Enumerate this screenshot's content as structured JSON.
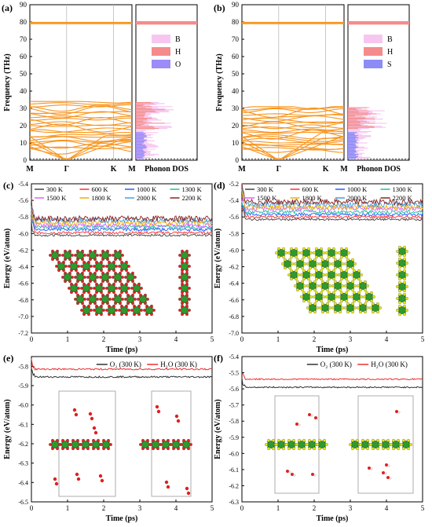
{
  "figure": {
    "panels": [
      {
        "label": "(a)",
        "dos_legend": [
          "B",
          "H",
          "O"
        ],
        "xticks": [
          "M",
          "Γ",
          "K",
          "M"
        ],
        "dos_label": "Phonon DOS",
        "ylabel": "Frequency (THz)",
        "yticks": [
          "0",
          "10",
          "20",
          "30",
          "40",
          "50",
          "60",
          "70",
          "80",
          "90"
        ]
      },
      {
        "label": "(b)",
        "dos_legend": [
          "B",
          "H",
          "S"
        ],
        "xticks": [
          "M",
          "Γ",
          "K",
          "M"
        ],
        "dos_label": "Phonon DOS",
        "ylabel": "Frequency (THz)",
        "yticks": [
          "0",
          "10",
          "20",
          "30",
          "40",
          "50",
          "60",
          "70",
          "80",
          "90"
        ]
      },
      {
        "label": "(c)",
        "ylabel": "Energy (eV/atom)",
        "xlabel": "Time (ps)",
        "yticks": [
          "-7.2",
          "-7.0",
          "-6.8",
          "-6.6",
          "-6.4",
          "-6.2",
          "-6.0",
          "-5.8",
          "-5.6",
          "-5.4"
        ],
        "xticks": [
          "0",
          "1",
          "2",
          "3",
          "4",
          "5"
        ],
        "legend": [
          "300 K",
          "600 K",
          "1000 K",
          "1300 K",
          "1500 K",
          "1800 K",
          "2000 K",
          "2200 K"
        ]
      },
      {
        "label": "(d)",
        "ylabel": "Energy (eV/atom)",
        "xlabel": "Time (ps)",
        "yticks": [
          "-7.0",
          "-6.8",
          "-6.6",
          "-6.4",
          "-6.2",
          "-6.0",
          "-5.8",
          "-5.6",
          "-5.4",
          "-5.2"
        ],
        "xticks": [
          "0",
          "1",
          "2",
          "3",
          "4",
          "5"
        ],
        "legend": [
          "300 K",
          "600 K",
          "1000 K",
          "1300 K",
          "1500 K",
          "1800 K",
          "2000 K",
          "2200 K"
        ]
      },
      {
        "label": "(e)",
        "ylabel": "Energy (eV/atom)",
        "xlabel": "Time (ps)",
        "yticks": [
          "-6.5",
          "-6.4",
          "-6.3",
          "-6.2",
          "-6.1",
          "-6.0",
          "-5.9",
          "-5.8"
        ],
        "xticks": [
          "0",
          "1",
          "2",
          "3",
          "4",
          "5"
        ],
        "legend": [
          "O₂ (300 K)",
          "H₂O (300 K)"
        ]
      },
      {
        "label": "(f)",
        "ylabel": "Energy (eV/atom)",
        "xlabel": "Time (ps)",
        "yticks": [
          "-6.3",
          "-6.2",
          "-6.1",
          "-6.0",
          "-5.9",
          "-5.8",
          "-5.7",
          "-5.6",
          "-5.5",
          "-5.4"
        ],
        "xticks": [
          "0",
          "1",
          "2",
          "3",
          "4",
          "5"
        ],
        "legend": [
          "O₂ (300 K)",
          "H₂O (300 K)"
        ]
      }
    ]
  },
  "colors": {
    "band": "#f7941d",
    "B": "#f7c6f0",
    "H": "#f48c8c",
    "O": "#9c8cf7",
    "S": "#8c8cf7",
    "boron": "#2e9a2e",
    "oxygen": "#e02020",
    "sulfur": "#e6e619",
    "hydrogen": "#f0f0f0",
    "temps": [
      "#444444",
      "#ff3030",
      "#2060ff",
      "#20c0a0",
      "#e060ff",
      "#f0b000",
      "#40a0e0",
      "#8b2020"
    ],
    "o2": "#333333",
    "h2o": "#ee3030"
  },
  "chart_data": [
    {
      "type": "line",
      "panel": "a",
      "title": "",
      "xlabel": "",
      "ylabel": "Frequency (THz)",
      "x": [
        "M",
        "Γ",
        "K",
        "M"
      ],
      "ylim": [
        0,
        90
      ],
      "series": [
        {
          "values_range": [
            0,
            35
          ]
        },
        {
          "values_range": [
            79,
            80
          ]
        }
      ],
      "dos": {
        "series": [
          {
            "name": "B",
            "range": [
              0,
              35
            ]
          },
          {
            "name": "H",
            "range": [
              20,
              35
            ]
          },
          {
            "name": "H",
            "range": [
              79,
              80
            ]
          },
          {
            "name": "O",
            "range": [
              0,
              15
            ]
          }
        ]
      }
    },
    {
      "type": "line",
      "panel": "b",
      "title": "",
      "xlabel": "",
      "ylabel": "Frequency (THz)",
      "x": [
        "M",
        "Γ",
        "K",
        "M"
      ],
      "ylim": [
        0,
        90
      ],
      "series": [
        {
          "values_range": [
            0,
            31
          ]
        },
        {
          "values_range": [
            79,
            80
          ]
        }
      ],
      "dos": {
        "series": [
          {
            "name": "B",
            "range": [
              0,
              31
            ]
          },
          {
            "name": "H",
            "range": [
              20,
              31
            ]
          },
          {
            "name": "H",
            "range": [
              79,
              80
            ]
          },
          {
            "name": "S",
            "range": [
              0,
              15
            ]
          }
        ]
      }
    },
    {
      "type": "line",
      "panel": "c",
      "xlabel": "Time (ps)",
      "ylabel": "Energy (eV/atom)",
      "xlim": [
        0,
        5
      ],
      "ylim": [
        -7.2,
        -5.4
      ],
      "series": [
        {
          "name": "300 K",
          "mean": -6.02
        },
        {
          "name": "600 K",
          "mean": -5.99
        },
        {
          "name": "1000 K",
          "mean": -5.95
        },
        {
          "name": "1300 K",
          "mean": -5.92
        },
        {
          "name": "1500 K",
          "mean": -5.9
        },
        {
          "name": "1800 K",
          "mean": -5.87
        },
        {
          "name": "2000 K",
          "mean": -5.84
        },
        {
          "name": "2200 K",
          "mean": -5.82
        }
      ]
    },
    {
      "type": "line",
      "panel": "d",
      "xlabel": "Time (ps)",
      "ylabel": "Energy (eV/atom)",
      "xlim": [
        0,
        5
      ],
      "ylim": [
        -7.0,
        -5.2
      ],
      "series": [
        {
          "name": "300 K",
          "mean": -5.63
        },
        {
          "name": "600 K",
          "mean": -5.6
        },
        {
          "name": "1000 K",
          "mean": -5.57
        },
        {
          "name": "1300 K",
          "mean": -5.54
        },
        {
          "name": "1500 K",
          "mean": -5.5
        },
        {
          "name": "1800 K",
          "mean": -5.48
        },
        {
          "name": "2000 K",
          "mean": -5.45
        },
        {
          "name": "2200 K",
          "mean": -5.42
        }
      ]
    },
    {
      "type": "line",
      "panel": "e",
      "xlabel": "Time (ps)",
      "ylabel": "Energy (eV/atom)",
      "xlim": [
        0,
        5
      ],
      "ylim": [
        -6.5,
        -5.75
      ],
      "series": [
        {
          "name": "O₂ (300 K)",
          "mean": -5.855
        },
        {
          "name": "H₂O (300 K)",
          "mean": -5.815
        }
      ]
    },
    {
      "type": "line",
      "panel": "f",
      "xlabel": "Time (ps)",
      "ylabel": "Energy (eV/atom)",
      "xlim": [
        0,
        5
      ],
      "ylim": [
        -6.3,
        -5.4
      ],
      "series": [
        {
          "name": "O₂ (300 K)",
          "mean": -5.59
        },
        {
          "name": "H₂O (300 K)",
          "mean": -5.54
        }
      ]
    }
  ]
}
